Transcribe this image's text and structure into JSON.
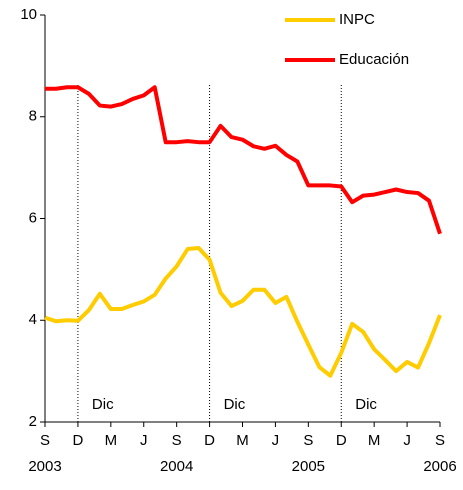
{
  "chart_data": {
    "type": "line",
    "categories": [
      "S",
      null,
      null,
      "D",
      null,
      null,
      "M",
      null,
      null,
      "J",
      null,
      null,
      "S",
      null,
      null,
      "D",
      null,
      null,
      "M",
      null,
      null,
      "J",
      null,
      null,
      "S",
      null,
      null,
      "D",
      null,
      null,
      "M",
      null,
      null,
      "J",
      null,
      null,
      "S"
    ],
    "category_years": [
      "2003",
      null,
      null,
      null,
      null,
      null,
      null,
      null,
      null,
      null,
      null,
      null,
      "2004",
      null,
      null,
      null,
      null,
      null,
      null,
      null,
      null,
      null,
      null,
      null,
      "2005",
      null,
      null,
      null,
      null,
      null,
      null,
      null,
      null,
      null,
      null,
      null,
      "2006"
    ],
    "series": [
      {
        "name": "INPC",
        "color": "#ffcc00",
        "values": [
          4.05,
          3.98,
          4.0,
          3.99,
          4.2,
          4.52,
          4.22,
          4.22,
          4.3,
          4.37,
          4.5,
          4.82,
          5.06,
          5.4,
          5.42,
          5.19,
          4.54,
          4.28,
          4.38,
          4.6,
          4.6,
          4.34,
          4.46,
          3.97,
          3.52,
          3.08,
          2.91,
          3.36,
          3.93,
          3.77,
          3.43,
          3.22,
          3.0,
          3.18,
          3.07,
          3.55,
          4.1
        ]
      },
      {
        "name": "Educación",
        "color": "#ff0000",
        "values": [
          8.55,
          8.55,
          8.58,
          8.58,
          8.45,
          8.22,
          8.2,
          8.25,
          8.35,
          8.42,
          8.58,
          7.5,
          7.5,
          7.52,
          7.5,
          7.5,
          7.82,
          7.6,
          7.55,
          7.42,
          7.37,
          7.43,
          7.25,
          7.12,
          6.65,
          6.65,
          6.65,
          6.63,
          6.32,
          6.45,
          6.47,
          6.52,
          6.57,
          6.52,
          6.5,
          6.35,
          5.7
        ]
      }
    ],
    "markers": [
      {
        "index": 3,
        "label": "Dic"
      },
      {
        "index": 15,
        "label": "Dic"
      },
      {
        "index": 27,
        "label": "Dic"
      }
    ],
    "ylim": [
      2,
      10
    ],
    "yticks": [
      2,
      4,
      6,
      8,
      10
    ],
    "grid": false,
    "legend": "top-right"
  }
}
